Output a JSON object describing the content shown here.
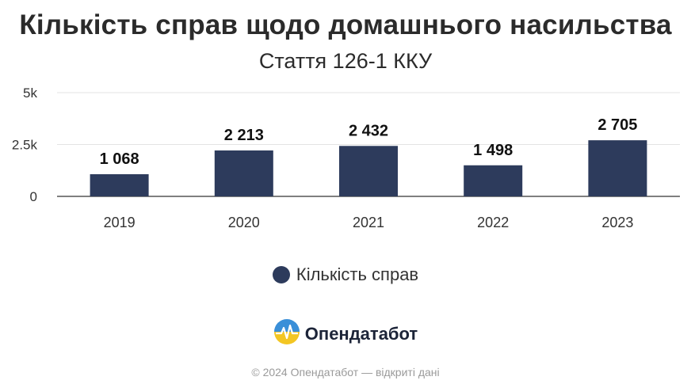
{
  "chart_data": {
    "type": "bar",
    "title": "Кількість справ щодо домашнього насильства",
    "subtitle": "Стаття 126-1 ККУ",
    "categories": [
      "2019",
      "2020",
      "2021",
      "2022",
      "2023"
    ],
    "series": [
      {
        "name": "Кількість справ",
        "values": [
          1068,
          2213,
          2432,
          1498,
          2705
        ]
      }
    ],
    "value_labels": [
      "1 068",
      "2 213",
      "2 432",
      "1 498",
      "2 705"
    ],
    "y_ticks": [
      {
        "value": 0,
        "label": "0"
      },
      {
        "value": 2500,
        "label": "2.5k"
      },
      {
        "value": 5000,
        "label": "5k"
      }
    ],
    "ylim": [
      0,
      5000
    ],
    "grid": true,
    "legend_position": "bottom",
    "bar_color": "#2d3b5c"
  },
  "brand": {
    "name": "Опендатабот",
    "icon": "opendatabot-logo-icon"
  },
  "footer": "© 2024 Опендатабот — відкриті дані"
}
